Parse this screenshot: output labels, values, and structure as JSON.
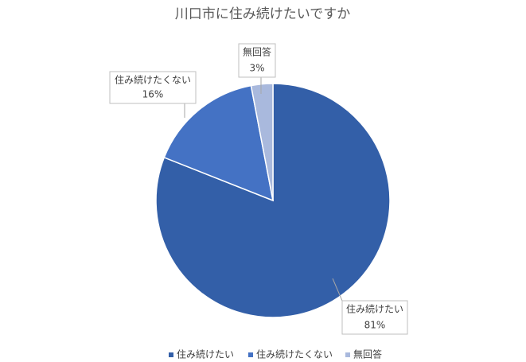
{
  "chart_data": {
    "type": "pie",
    "title": "川口市に住み続けたいですか",
    "categories": [
      "住み続けたい",
      "住み続けたくない",
      "無回答"
    ],
    "values": [
      81,
      16,
      3
    ],
    "value_labels": [
      "81%",
      "16%",
      "3%"
    ],
    "colors": [
      "#335fa8",
      "#4472c4",
      "#a9b9dd"
    ],
    "legend": "bottom"
  }
}
